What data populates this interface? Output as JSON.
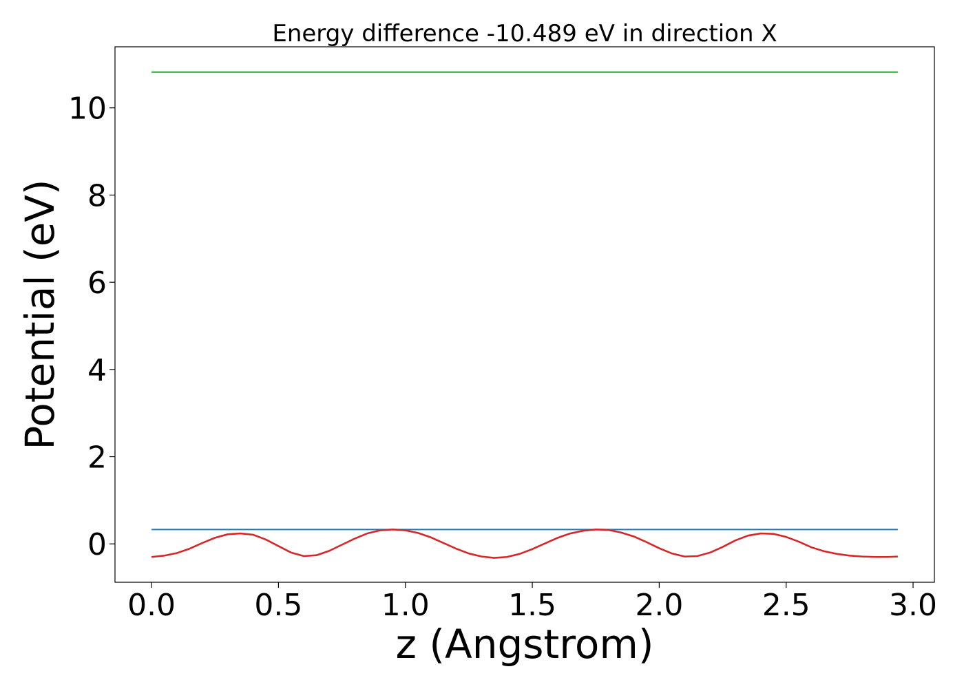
{
  "chart_data": {
    "type": "line",
    "title": "Energy difference -10.489 eV in direction X",
    "xlabel": "z (Angstrom)",
    "ylabel": "Potential (eV)",
    "xlim": [
      -0.144,
      3.084
    ],
    "ylim": [
      -0.88,
      11.4
    ],
    "xticks": [
      0.0,
      0.5,
      1.0,
      1.5,
      2.0,
      2.5,
      3.0
    ],
    "xtick_labels": [
      "0.0",
      "0.5",
      "1.0",
      "1.5",
      "2.0",
      "2.5",
      "3.0"
    ],
    "yticks": [
      0,
      2,
      4,
      6,
      8,
      10
    ],
    "ytick_labels": [
      "0",
      "2",
      "4",
      "6",
      "8",
      "10"
    ],
    "grid": false,
    "series": [
      {
        "color": "#2ca02c",
        "x": [
          0.0,
          2.94
        ],
        "y": [
          10.82,
          10.82
        ]
      },
      {
        "color": "#1f77b4",
        "x": [
          0.0,
          2.94
        ],
        "y": [
          0.33,
          0.33
        ]
      },
      {
        "color": "#d62728",
        "x": [
          0.0,
          0.05,
          0.1,
          0.15,
          0.2,
          0.25,
          0.3,
          0.35,
          0.4,
          0.45,
          0.5,
          0.55,
          0.6,
          0.65,
          0.7,
          0.75,
          0.8,
          0.85,
          0.9,
          0.95,
          1.0,
          1.05,
          1.1,
          1.15,
          1.2,
          1.25,
          1.3,
          1.35,
          1.4,
          1.45,
          1.5,
          1.55,
          1.6,
          1.65,
          1.7,
          1.75,
          1.8,
          1.85,
          1.9,
          1.95,
          2.0,
          2.05,
          2.1,
          2.15,
          2.2,
          2.25,
          2.3,
          2.35,
          2.4,
          2.45,
          2.5,
          2.55,
          2.6,
          2.65,
          2.7,
          2.75,
          2.8,
          2.85,
          2.9,
          2.94
        ],
        "y": [
          -0.3,
          -0.27,
          -0.21,
          -0.11,
          0.02,
          0.14,
          0.22,
          0.24,
          0.21,
          0.1,
          -0.05,
          -0.2,
          -0.28,
          -0.26,
          -0.16,
          -0.02,
          0.12,
          0.24,
          0.31,
          0.33,
          0.31,
          0.25,
          0.15,
          0.02,
          -0.11,
          -0.22,
          -0.29,
          -0.32,
          -0.3,
          -0.23,
          -0.12,
          0.01,
          0.14,
          0.24,
          0.3,
          0.33,
          0.32,
          0.26,
          0.17,
          0.04,
          -0.1,
          -0.22,
          -0.29,
          -0.28,
          -0.2,
          -0.07,
          0.08,
          0.19,
          0.24,
          0.23,
          0.16,
          0.05,
          -0.08,
          -0.17,
          -0.23,
          -0.27,
          -0.29,
          -0.3,
          -0.3,
          -0.29
        ]
      }
    ]
  }
}
